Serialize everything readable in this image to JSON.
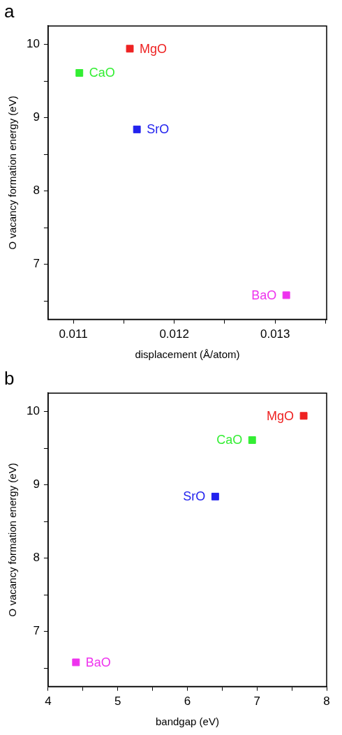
{
  "chart_data": [
    {
      "type": "scatter",
      "title": "a",
      "xlabel": "displacement (Å/atom)",
      "ylabel": "O vacancy formation energy (eV)",
      "marker": "square",
      "grid": false,
      "xlim": [
        0.01075,
        0.01351
      ],
      "xticks": [
        0.011,
        {
          "value": 0.0115,
          "label": null
        },
        0.012,
        {
          "value": 0.0125,
          "label": null
        },
        0.013,
        {
          "value": 0.0135,
          "label": null
        }
      ],
      "ylim": [
        6.25,
        10.25
      ],
      "yticks": [
        {
          "value": 6.5,
          "label": null
        },
        7,
        {
          "value": 7.5,
          "label": null
        },
        8,
        {
          "value": 8.5,
          "label": null
        },
        9,
        {
          "value": 9.5,
          "label": null
        },
        10
      ],
      "series": [
        {
          "name": "MgO",
          "color": "#ee2222",
          "x": [
            0.01156
          ],
          "values": [
            9.94
          ]
        },
        {
          "name": "CaO",
          "color": "#33ee33",
          "x": [
            0.01106
          ],
          "values": [
            9.61
          ]
        },
        {
          "name": "SrO",
          "color": "#2222ee",
          "x": [
            0.01163
          ],
          "values": [
            8.84
          ]
        },
        {
          "name": "BaO",
          "color": "#ee33ee",
          "x": [
            0.01311
          ],
          "values": [
            6.58
          ]
        }
      ]
    },
    {
      "type": "scatter",
      "title": "b",
      "xlabel": "bandgap (eV)",
      "ylabel": "O vacancy formation energy (eV)",
      "marker": "square",
      "grid": false,
      "xlim": [
        4,
        8
      ],
      "xticks": [
        4,
        {
          "value": 4.5,
          "label": null
        },
        5,
        {
          "value": 5.5,
          "label": null
        },
        6,
        {
          "value": 6.5,
          "label": null
        },
        7,
        {
          "value": 7.5,
          "label": null
        },
        8
      ],
      "ylim": [
        6.25,
        10.25
      ],
      "yticks": [
        {
          "value": 6.5,
          "label": null
        },
        7,
        {
          "value": 7.5,
          "label": null
        },
        8,
        {
          "value": 8.5,
          "label": null
        },
        9,
        {
          "value": 9.5,
          "label": null
        },
        10
      ],
      "series": [
        {
          "name": "MgO",
          "color": "#ee2222",
          "x": [
            7.67
          ],
          "values": [
            9.94
          ]
        },
        {
          "name": "CaO",
          "color": "#33ee33",
          "x": [
            6.93
          ],
          "values": [
            9.61
          ]
        },
        {
          "name": "SrO",
          "color": "#2222ee",
          "x": [
            6.4
          ],
          "values": [
            8.84
          ]
        },
        {
          "name": "BaO",
          "color": "#ee33ee",
          "x": [
            4.4
          ],
          "values": [
            6.58
          ]
        }
      ]
    }
  ]
}
